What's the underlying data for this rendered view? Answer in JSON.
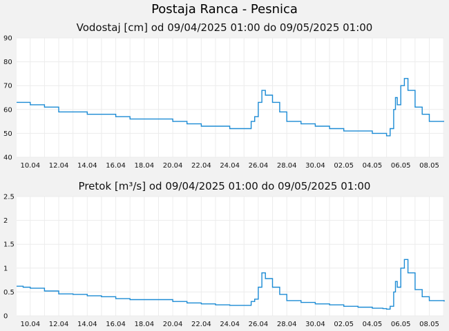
{
  "page": {
    "title": "Postaja Ranca - Pesnica"
  },
  "chart_data": [
    {
      "type": "line",
      "title": "Vodostaj [cm] od 09/04/2025 01:00 do 09/05/2025 01:00",
      "ylim": [
        40,
        90
      ],
      "yticks": [
        "90",
        "80",
        "70",
        "60",
        "50",
        "40"
      ],
      "xlim": [
        "2025-04-09T01:00",
        "2025-05-09T01:00"
      ],
      "xticks": [
        "10.04",
        "12.04",
        "14.04",
        "16.04",
        "18.04",
        "20.04",
        "22.04",
        "24.04",
        "26.04",
        "28.04",
        "30.04",
        "02.05",
        "04.05",
        "06.05",
        "08.05"
      ],
      "grid": true,
      "color": "#1a8ad4",
      "x": [
        "2025-04-09T01:00",
        "2025-04-09T12:00",
        "2025-04-10T00:00",
        "2025-04-11T00:00",
        "2025-04-12T00:00",
        "2025-04-13T00:00",
        "2025-04-14T00:00",
        "2025-04-15T00:00",
        "2025-04-16T00:00",
        "2025-04-17T00:00",
        "2025-04-18T00:00",
        "2025-04-19T00:00",
        "2025-04-20T00:00",
        "2025-04-21T00:00",
        "2025-04-22T00:00",
        "2025-04-23T00:00",
        "2025-04-24T00:00",
        "2025-04-24T12:00",
        "2025-04-25T00:00",
        "2025-04-25T12:00",
        "2025-04-25T18:00",
        "2025-04-26T00:00",
        "2025-04-26T06:00",
        "2025-04-26T12:00",
        "2025-04-27T00:00",
        "2025-04-27T12:00",
        "2025-04-28T00:00",
        "2025-04-29T00:00",
        "2025-04-30T00:00",
        "2025-05-01T00:00",
        "2025-05-02T00:00",
        "2025-05-03T00:00",
        "2025-05-04T00:00",
        "2025-05-04T18:00",
        "2025-05-05T00:00",
        "2025-05-05T06:00",
        "2025-05-05T12:00",
        "2025-05-05T15:00",
        "2025-05-05T18:00",
        "2025-05-06T00:00",
        "2025-05-06T06:00",
        "2025-05-06T12:00",
        "2025-05-07T00:00",
        "2025-05-07T12:00",
        "2025-05-08T00:00",
        "2025-05-09T01:00"
      ],
      "values": [
        63,
        63,
        62,
        61,
        59,
        59,
        58,
        58,
        57,
        56,
        56,
        56,
        55,
        54,
        53,
        53,
        52,
        52,
        52,
        55,
        57,
        63,
        68,
        66,
        63,
        59,
        55,
        54,
        53,
        52,
        51,
        51,
        50,
        50,
        49,
        52,
        60,
        65,
        62,
        70,
        73,
        68,
        61,
        58,
        55,
        55
      ],
      "xlabel": "",
      "ylabel": ""
    },
    {
      "type": "line",
      "title": "Pretok [m³/s] od 09/04/2025 01:00 do 09/05/2025 01:00",
      "ylim": [
        0,
        2.5
      ],
      "yticks": [
        "2.5",
        "2",
        "1.5",
        "1",
        "0.5",
        "0"
      ],
      "xlim": [
        "2025-04-09T01:00",
        "2025-05-09T01:00"
      ],
      "xticks": [
        "10.04",
        "12.04",
        "14.04",
        "16.04",
        "18.04",
        "20.04",
        "22.04",
        "24.04",
        "26.04",
        "28.04",
        "30.04",
        "02.05",
        "04.05",
        "06.05",
        "08.05"
      ],
      "grid": true,
      "color": "#1a8ad4",
      "x": [
        "2025-04-09T01:00",
        "2025-04-09T12:00",
        "2025-04-10T00:00",
        "2025-04-11T00:00",
        "2025-04-12T00:00",
        "2025-04-13T00:00",
        "2025-04-14T00:00",
        "2025-04-15T00:00",
        "2025-04-16T00:00",
        "2025-04-17T00:00",
        "2025-04-18T00:00",
        "2025-04-19T00:00",
        "2025-04-20T00:00",
        "2025-04-21T00:00",
        "2025-04-22T00:00",
        "2025-04-23T00:00",
        "2025-04-24T00:00",
        "2025-04-24T12:00",
        "2025-04-25T00:00",
        "2025-04-25T12:00",
        "2025-04-25T18:00",
        "2025-04-26T00:00",
        "2025-04-26T06:00",
        "2025-04-26T12:00",
        "2025-04-27T00:00",
        "2025-04-27T12:00",
        "2025-04-28T00:00",
        "2025-04-29T00:00",
        "2025-04-30T00:00",
        "2025-05-01T00:00",
        "2025-05-02T00:00",
        "2025-05-03T00:00",
        "2025-05-04T00:00",
        "2025-05-04T18:00",
        "2025-05-05T00:00",
        "2025-05-05T06:00",
        "2025-05-05T12:00",
        "2025-05-05T15:00",
        "2025-05-05T18:00",
        "2025-05-06T00:00",
        "2025-05-06T06:00",
        "2025-05-06T12:00",
        "2025-05-07T00:00",
        "2025-05-07T12:00",
        "2025-05-08T00:00",
        "2025-05-09T01:00"
      ],
      "values": [
        0.62,
        0.6,
        0.58,
        0.52,
        0.46,
        0.45,
        0.42,
        0.4,
        0.36,
        0.34,
        0.34,
        0.34,
        0.3,
        0.27,
        0.25,
        0.23,
        0.22,
        0.22,
        0.22,
        0.3,
        0.35,
        0.6,
        0.9,
        0.78,
        0.6,
        0.45,
        0.32,
        0.28,
        0.25,
        0.23,
        0.2,
        0.18,
        0.16,
        0.15,
        0.14,
        0.2,
        0.5,
        0.72,
        0.6,
        1.0,
        1.18,
        0.9,
        0.55,
        0.4,
        0.32,
        0.3
      ],
      "xlabel": "",
      "ylabel": ""
    }
  ]
}
